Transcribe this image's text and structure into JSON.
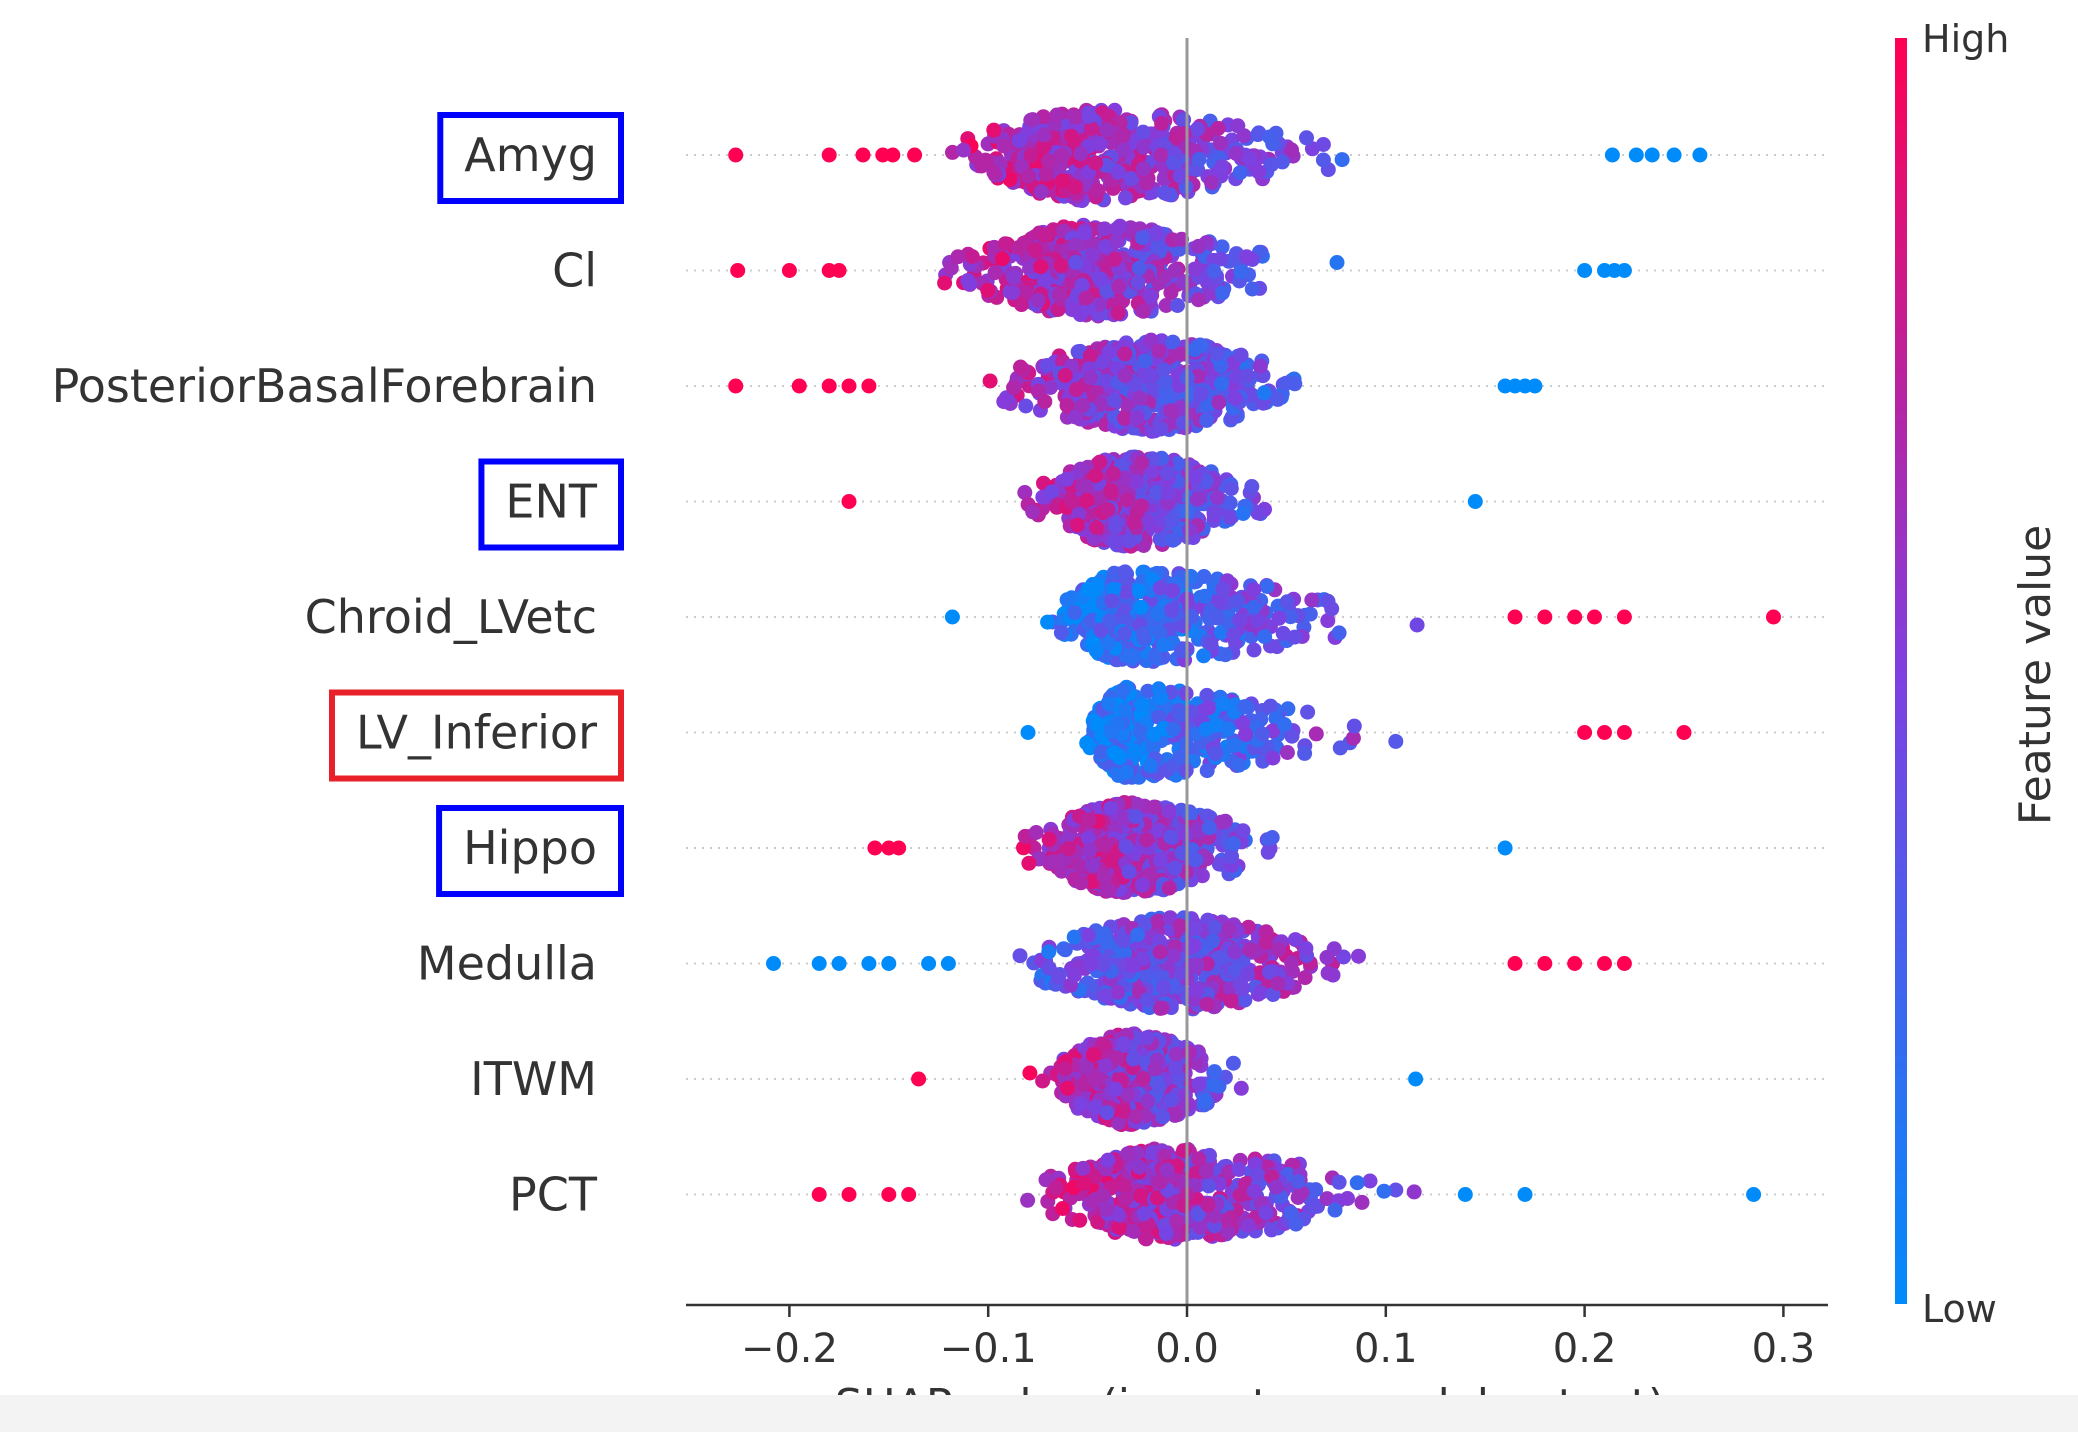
{
  "chart_data": {
    "type": "scatter",
    "subtype": "shap-beeswarm",
    "xlabel": "SHAP value (impact on model output)",
    "ylabel": "",
    "xlim": [
      -0.25,
      0.32
    ],
    "xticks": [
      -0.2,
      -0.1,
      0.0,
      0.1,
      0.2,
      0.3
    ],
    "xtick_labels": [
      "−0.2",
      "−0.1",
      "0.0",
      "0.1",
      "0.2",
      "0.3"
    ],
    "zero_line": true,
    "colorbar": {
      "label": "Feature value",
      "high_label": "High",
      "low_label": "Low",
      "high_color": "#ff0052",
      "low_color": "#008bfb"
    },
    "highlight_colors": {
      "blue": "#0000ff",
      "red": "#e8202a"
    },
    "features": [
      {
        "name": "Amyg",
        "highlight": "blue",
        "min": -0.23,
        "max": 0.26,
        "center": -0.047,
        "left_dots": [
          -0.227,
          -0.18,
          -0.163,
          -0.153,
          -0.148,
          -0.137
        ],
        "right_dots": [
          0.214,
          0.226,
          0.234,
          0.245,
          0.258
        ],
        "high_side": "left"
      },
      {
        "name": "Cl",
        "highlight": null,
        "min": -0.23,
        "max": 0.22,
        "center": -0.05,
        "left_dots": [
          -0.226,
          -0.2,
          -0.18,
          -0.175
        ],
        "right_dots": [
          0.2,
          0.21,
          0.215,
          0.22
        ],
        "high_side": "left"
      },
      {
        "name": "PosteriorBasalForebrain",
        "highlight": null,
        "min": -0.23,
        "max": 0.18,
        "center": -0.015,
        "left_dots": [
          -0.227,
          -0.195,
          -0.18,
          -0.17,
          -0.16
        ],
        "right_dots": [
          0.16,
          0.165,
          0.17,
          0.175
        ],
        "high_side": "left"
      },
      {
        "name": "ENT",
        "highlight": "blue",
        "min": -0.17,
        "max": 0.145,
        "center": -0.025,
        "left_dots": [
          -0.17
        ],
        "right_dots": [
          0.145
        ],
        "high_side": "left"
      },
      {
        "name": "Chroid_LVetc",
        "highlight": null,
        "min": -0.12,
        "max": 0.295,
        "center": -0.03,
        "left_dots": [
          -0.118
        ],
        "right_dots": [
          0.165,
          0.18,
          0.195,
          0.205,
          0.22,
          0.295
        ],
        "high_side": "right"
      },
      {
        "name": "LV_Inferior",
        "highlight": "red",
        "min": -0.08,
        "max": 0.255,
        "center": -0.03,
        "left_dots": [
          -0.08
        ],
        "right_dots": [
          0.2,
          0.21,
          0.22,
          0.25
        ],
        "high_side": "right"
      },
      {
        "name": "Hippo",
        "highlight": "blue",
        "min": -0.16,
        "max": 0.16,
        "center": -0.03,
        "left_dots": [
          -0.157,
          -0.15,
          -0.145
        ],
        "right_dots": [
          0.16
        ],
        "high_side": "left"
      },
      {
        "name": "Medulla",
        "highlight": null,
        "min": -0.21,
        "max": 0.22,
        "center": -0.005,
        "left_dots": [
          -0.208,
          -0.185,
          -0.175,
          -0.16,
          -0.15,
          -0.13,
          -0.12
        ],
        "right_dots": [
          0.165,
          0.18,
          0.195,
          0.21,
          0.22
        ],
        "high_side": "right"
      },
      {
        "name": "ITWM",
        "highlight": null,
        "min": -0.135,
        "max": 0.115,
        "center": -0.03,
        "left_dots": [
          -0.135
        ],
        "right_dots": [
          0.115
        ],
        "high_side": "left"
      },
      {
        "name": "PCT",
        "highlight": null,
        "min": -0.185,
        "max": 0.285,
        "center": -0.01,
        "left_dots": [
          -0.185,
          -0.17,
          -0.15,
          -0.14
        ],
        "right_dots": [
          0.14,
          0.17,
          0.285
        ],
        "high_side": "left"
      }
    ]
  }
}
